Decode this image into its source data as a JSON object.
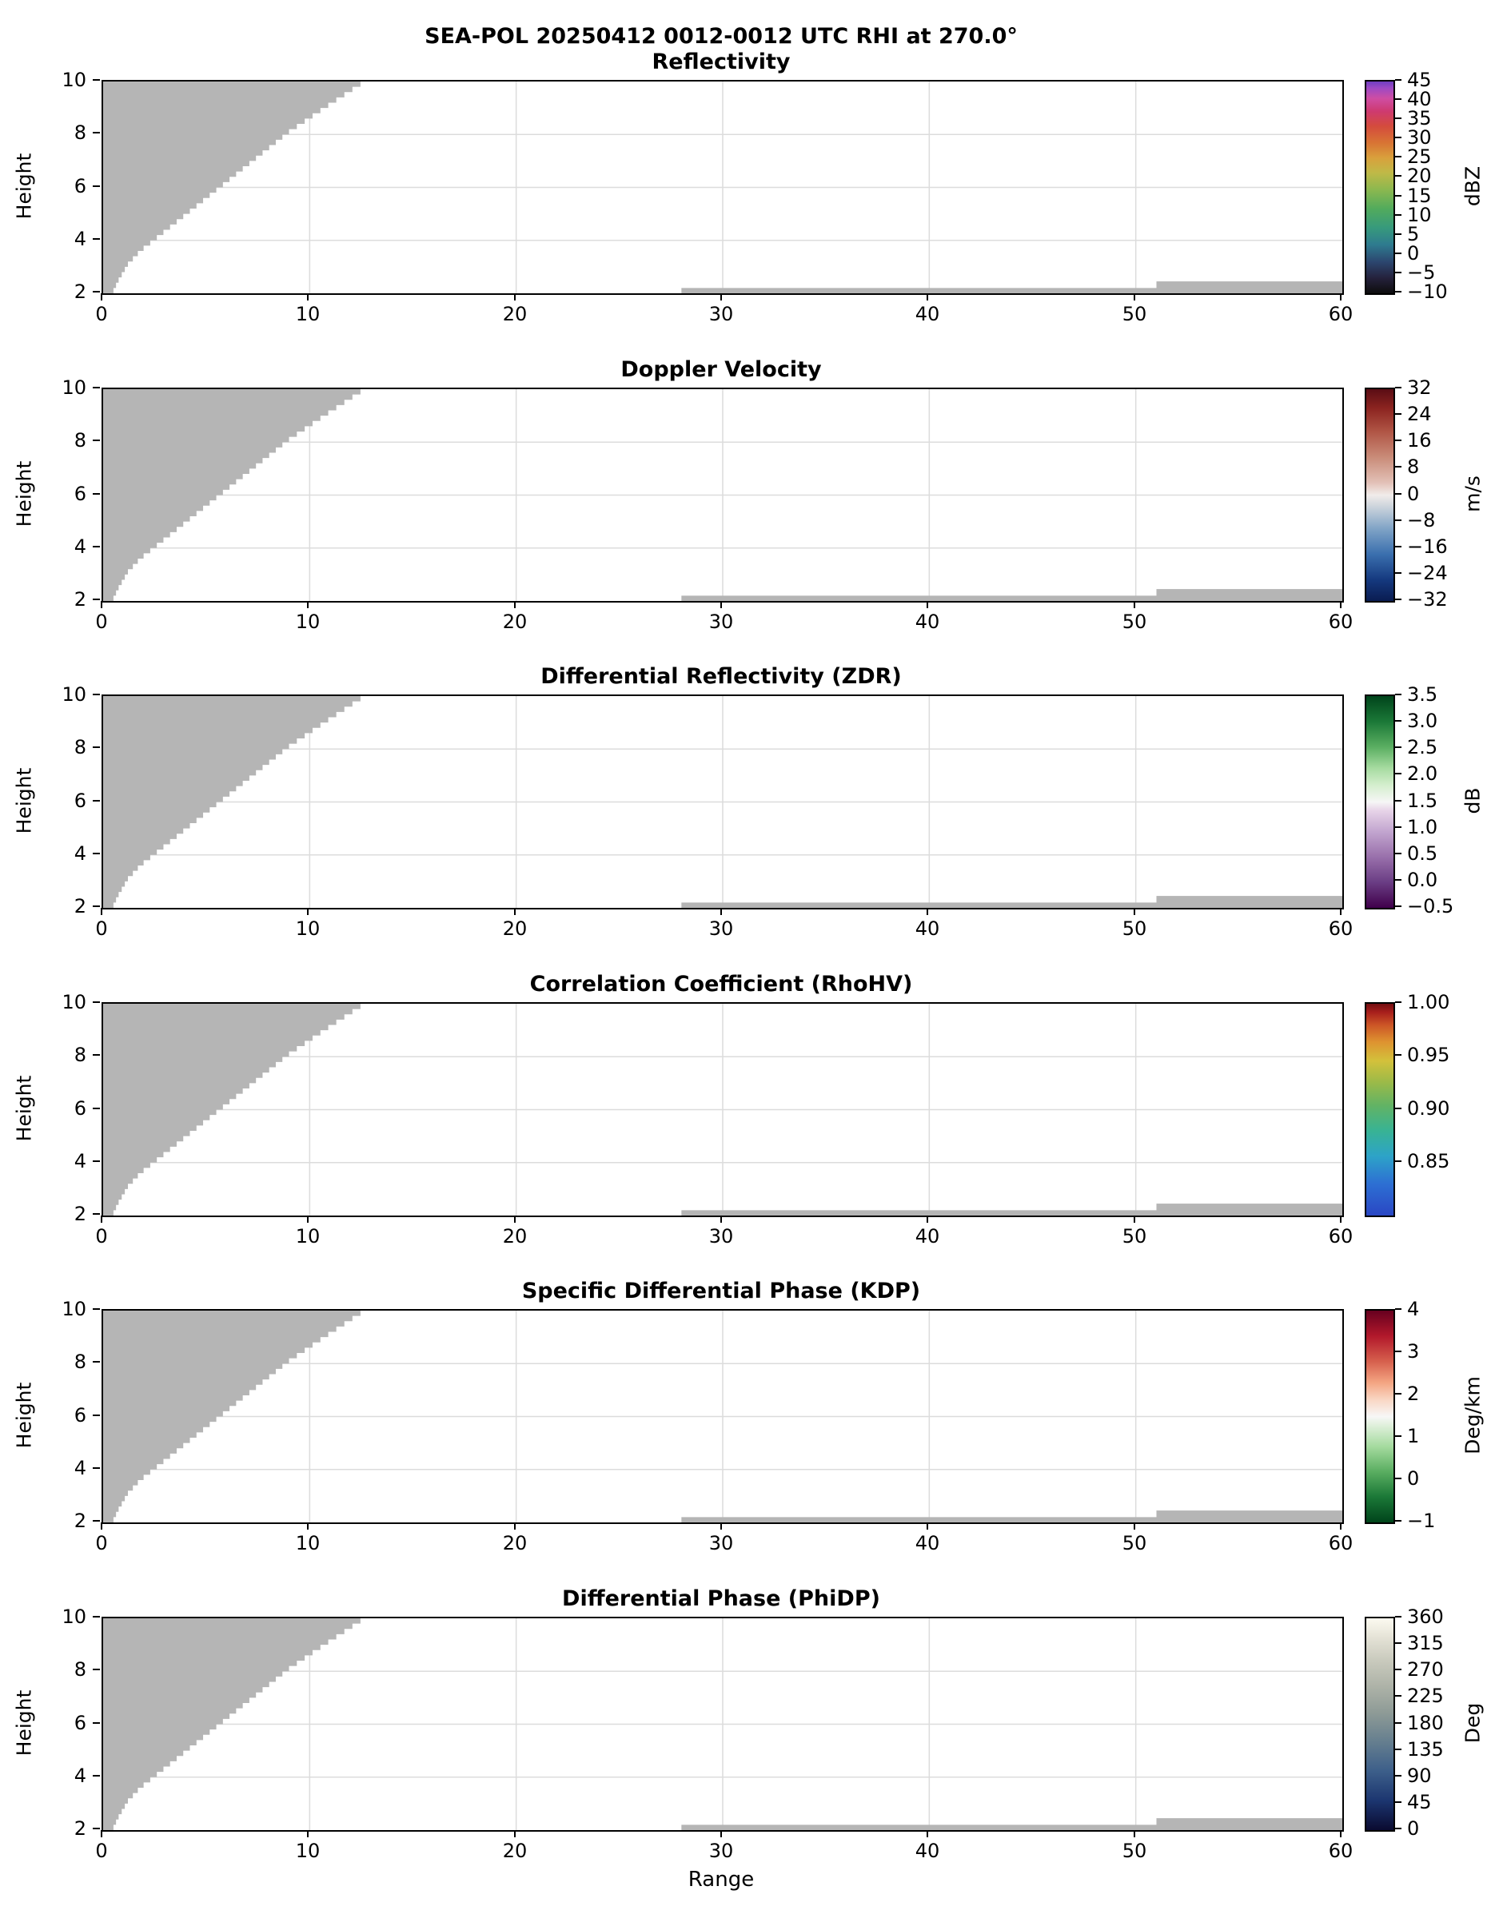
{
  "figure": {
    "title": "SEA-POL 20250412 0012-0012 UTC RHI at 270.0°",
    "xlabel": "Range",
    "ylabel": "Height",
    "background": "#ffffff"
  },
  "axes": {
    "xlim": [
      0,
      60
    ],
    "ylim": [
      2,
      10
    ],
    "x_tick_values": [
      0,
      10,
      20,
      30,
      40,
      50,
      60
    ],
    "x_tick_labels": [
      "0",
      "10",
      "20",
      "30",
      "40",
      "50",
      "60"
    ],
    "y_tick_values": [
      2,
      4,
      6,
      8,
      10
    ],
    "y_tick_labels": [
      "2",
      "4",
      "6",
      "8",
      "10"
    ],
    "grid": true,
    "grid_color": "#dcdcdc"
  },
  "chart_data": {
    "type": "heatmap",
    "mask_color": "#b5b5b5",
    "wedge_profile_h_x": [
      [
        2,
        0.5
      ],
      [
        2.4,
        0.75
      ],
      [
        3,
        1.2
      ],
      [
        3.5,
        1.8
      ],
      [
        4,
        2.6
      ],
      [
        5,
        4.2
      ],
      [
        6,
        5.8
      ],
      [
        7,
        7.4
      ],
      [
        8,
        9.0
      ],
      [
        9,
        10.9
      ],
      [
        10,
        12.85
      ]
    ],
    "ground_strips": [
      {
        "x0": 28,
        "x1": 51,
        "y0": 2,
        "y1": 2.2
      },
      {
        "x0": 51,
        "x1": 60,
        "y0": 2,
        "y1": 2.45
      }
    ],
    "panels": [
      {
        "title": "Reflectivity",
        "unit": "dBZ",
        "vmin": -10,
        "vmax": 45,
        "cb_ticks": [
          "45",
          "40",
          "35",
          "30",
          "25",
          "20",
          "15",
          "10",
          "5",
          "0",
          "−5",
          "−10"
        ],
        "cb_tick_values": [
          45,
          40,
          35,
          30,
          25,
          20,
          15,
          10,
          5,
          0,
          -5,
          -10
        ],
        "gradient": [
          [
            0,
            "#0d0d0d"
          ],
          [
            7,
            "#24203a"
          ],
          [
            15,
            "#2c4770"
          ],
          [
            23,
            "#2e7b8f"
          ],
          [
            31,
            "#379a7c"
          ],
          [
            40,
            "#52ab5c"
          ],
          [
            49,
            "#8cb84f"
          ],
          [
            57,
            "#c0b947"
          ],
          [
            64,
            "#d9a03c"
          ],
          [
            71,
            "#d87434"
          ],
          [
            79,
            "#d44b3d"
          ],
          [
            86,
            "#ce3a70"
          ],
          [
            92,
            "#cf4da3"
          ],
          [
            97,
            "#9c49c4"
          ],
          [
            100,
            "#6f3ec0"
          ]
        ]
      },
      {
        "title": "Doppler Velocity",
        "unit": "m/s",
        "vmin": -32,
        "vmax": 32,
        "cb_ticks": [
          "32",
          "24",
          "16",
          "8",
          "0",
          "−8",
          "−16",
          "−24",
          "−32"
        ],
        "cb_tick_values": [
          32,
          24,
          16,
          8,
          0,
          -8,
          -16,
          -24,
          -32
        ],
        "gradient": [
          [
            0,
            "#0a1c51"
          ],
          [
            10,
            "#15397f"
          ],
          [
            22,
            "#3a6fae"
          ],
          [
            34,
            "#7fa3c6"
          ],
          [
            45,
            "#cfd6dd"
          ],
          [
            50,
            "#f1ecea"
          ],
          [
            56,
            "#e2c0b6"
          ],
          [
            68,
            "#c98b78"
          ],
          [
            80,
            "#b05545"
          ],
          [
            91,
            "#8c2420"
          ],
          [
            100,
            "#5a0c14"
          ]
        ]
      },
      {
        "title": "Differential Reflectivity (ZDR)",
        "unit": "dB",
        "vmin": -0.5,
        "vmax": 3.5,
        "cb_ticks": [
          "3.5",
          "3.0",
          "2.5",
          "2.0",
          "1.5",
          "1.0",
          "0.5",
          "0.0",
          "−0.5"
        ],
        "cb_tick_values": [
          3.5,
          3.0,
          2.5,
          2.0,
          1.5,
          1.0,
          0.5,
          0.0,
          -0.5
        ],
        "gradient": [
          [
            0,
            "#40004b"
          ],
          [
            12,
            "#6a3d84"
          ],
          [
            24,
            "#9970ab"
          ],
          [
            36,
            "#c2a5cf"
          ],
          [
            46,
            "#e7d4e8"
          ],
          [
            50,
            "#f6f6f6"
          ],
          [
            58,
            "#d4eecd"
          ],
          [
            66,
            "#a6dba0"
          ],
          [
            76,
            "#5aae61"
          ],
          [
            88,
            "#1b7837"
          ],
          [
            100,
            "#00441b"
          ]
        ]
      },
      {
        "title": "Correlation Coefficient (RhoHV)",
        "unit": "",
        "vmin": 0.8,
        "vmax": 1.0,
        "cb_ticks": [
          "1.00",
          "0.95",
          "0.90",
          "0.85"
        ],
        "cb_tick_values": [
          1.0,
          0.95,
          0.9,
          0.85
        ],
        "gradient": [
          [
            0,
            "#2a47c4"
          ],
          [
            15,
            "#2d6fd3"
          ],
          [
            28,
            "#2da3c8"
          ],
          [
            40,
            "#38b394"
          ],
          [
            52,
            "#62b364"
          ],
          [
            63,
            "#9cba48"
          ],
          [
            73,
            "#d3c13b"
          ],
          [
            82,
            "#de9330"
          ],
          [
            90,
            "#cc5526"
          ],
          [
            96,
            "#a81f1c"
          ],
          [
            100,
            "#720e10"
          ]
        ]
      },
      {
        "title": "Specific Differential Phase (KDP)",
        "unit": "Deg/km",
        "vmin": -1,
        "vmax": 4,
        "cb_ticks": [
          "4",
          "3",
          "2",
          "1",
          "0",
          "−1"
        ],
        "cb_tick_values": [
          4,
          3,
          2,
          1,
          0,
          -1
        ],
        "gradient": [
          [
            0,
            "#00441b"
          ],
          [
            12,
            "#1b7837"
          ],
          [
            24,
            "#5aae61"
          ],
          [
            36,
            "#a6dba0"
          ],
          [
            46,
            "#e0f0dc"
          ],
          [
            50,
            "#f7f7f7"
          ],
          [
            58,
            "#f9d6c3"
          ],
          [
            66,
            "#f4a582"
          ],
          [
            76,
            "#d6604d"
          ],
          [
            88,
            "#b2182b"
          ],
          [
            100,
            "#67001f"
          ]
        ]
      },
      {
        "title": "Differential Phase (PhiDP)",
        "unit": "Deg",
        "vmin": 0,
        "vmax": 360,
        "cb_ticks": [
          "360",
          "315",
          "270",
          "225",
          "180",
          "135",
          "90",
          "45",
          "0"
        ],
        "cb_tick_values": [
          360,
          315,
          270,
          225,
          180,
          135,
          90,
          45,
          0
        ],
        "gradient": [
          [
            0,
            "#0a0a30"
          ],
          [
            14,
            "#1c3670"
          ],
          [
            28,
            "#3d5f8a"
          ],
          [
            42,
            "#667f8f"
          ],
          [
            55,
            "#8d9a96"
          ],
          [
            68,
            "#aeb3a8"
          ],
          [
            80,
            "#c9cabd"
          ],
          [
            90,
            "#e2e0d4"
          ],
          [
            100,
            "#fcfaf0"
          ]
        ]
      }
    ]
  }
}
